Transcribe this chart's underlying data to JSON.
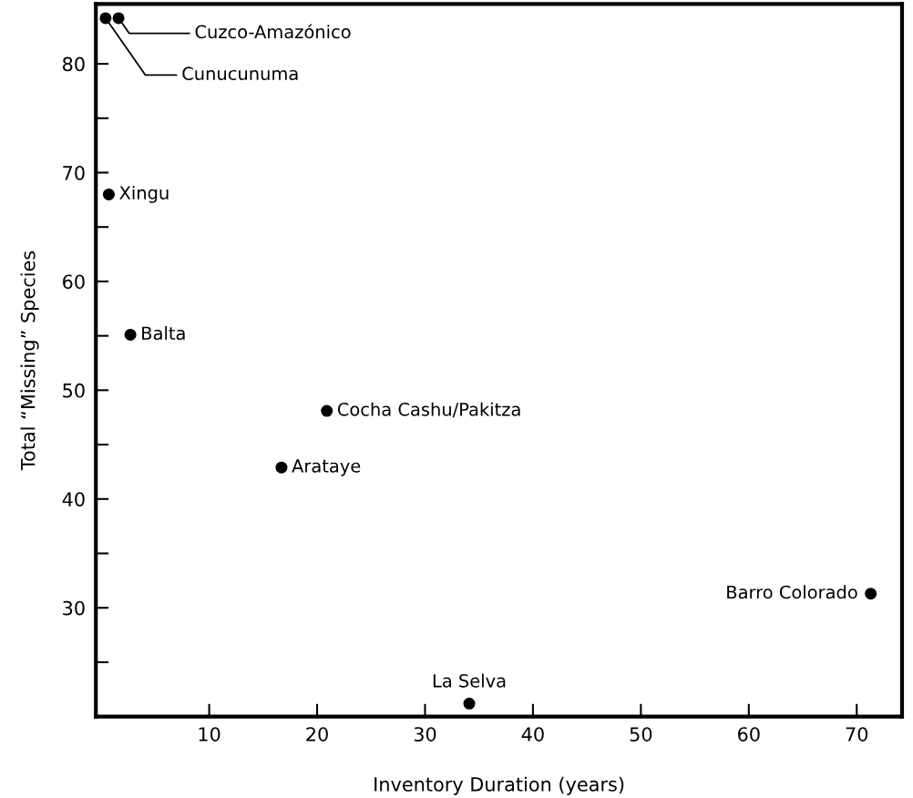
{
  "chart_data": {
    "type": "scatter",
    "xlabel": "Inventory Duration (years)",
    "ylabel": "Total “Missing” Species",
    "x": [
      0.4,
      1.6,
      0.7,
      2.7,
      20.9,
      16.7,
      71.3,
      34.1
    ],
    "values": [
      84.2,
      84.2,
      68.0,
      55.1,
      48.1,
      42.9,
      31.3,
      21.2
    ],
    "color": "#000000",
    "marker": "circle",
    "xlim": [
      -0.5,
      74.2
    ],
    "ylim": [
      20,
      85.5
    ],
    "xticks": [
      10,
      20,
      30,
      40,
      50,
      60,
      70
    ],
    "yticks": [
      {
        "value": 25,
        "label": null
      },
      30,
      {
        "value": 35,
        "label": null
      },
      40,
      {
        "value": 45,
        "label": null
      },
      50,
      {
        "value": 55,
        "label": null
      },
      60,
      {
        "value": 65,
        "label": null
      },
      70,
      {
        "value": 75,
        "label": null
      },
      80
    ],
    "annotations": [
      {
        "text": "Cunucunuma",
        "x": 0.4,
        "y": 84.2
      },
      {
        "text": "Cuzco-Amazónico",
        "x": 1.6,
        "y": 84.2
      },
      {
        "text": "Xingu",
        "x": 0.7,
        "y": 68.0
      },
      {
        "text": "Balta",
        "x": 2.7,
        "y": 55.1
      },
      {
        "text": "Cocha Cashu/Pakitza",
        "x": 20.9,
        "y": 48.1
      },
      {
        "text": "Arataye",
        "x": 16.7,
        "y": 42.9
      },
      {
        "text": "Barro Colorado",
        "x": 71.3,
        "y": 31.3
      },
      {
        "text": "La Selva",
        "x": 34.1,
        "y": 21.2
      }
    ],
    "grid": false
  }
}
